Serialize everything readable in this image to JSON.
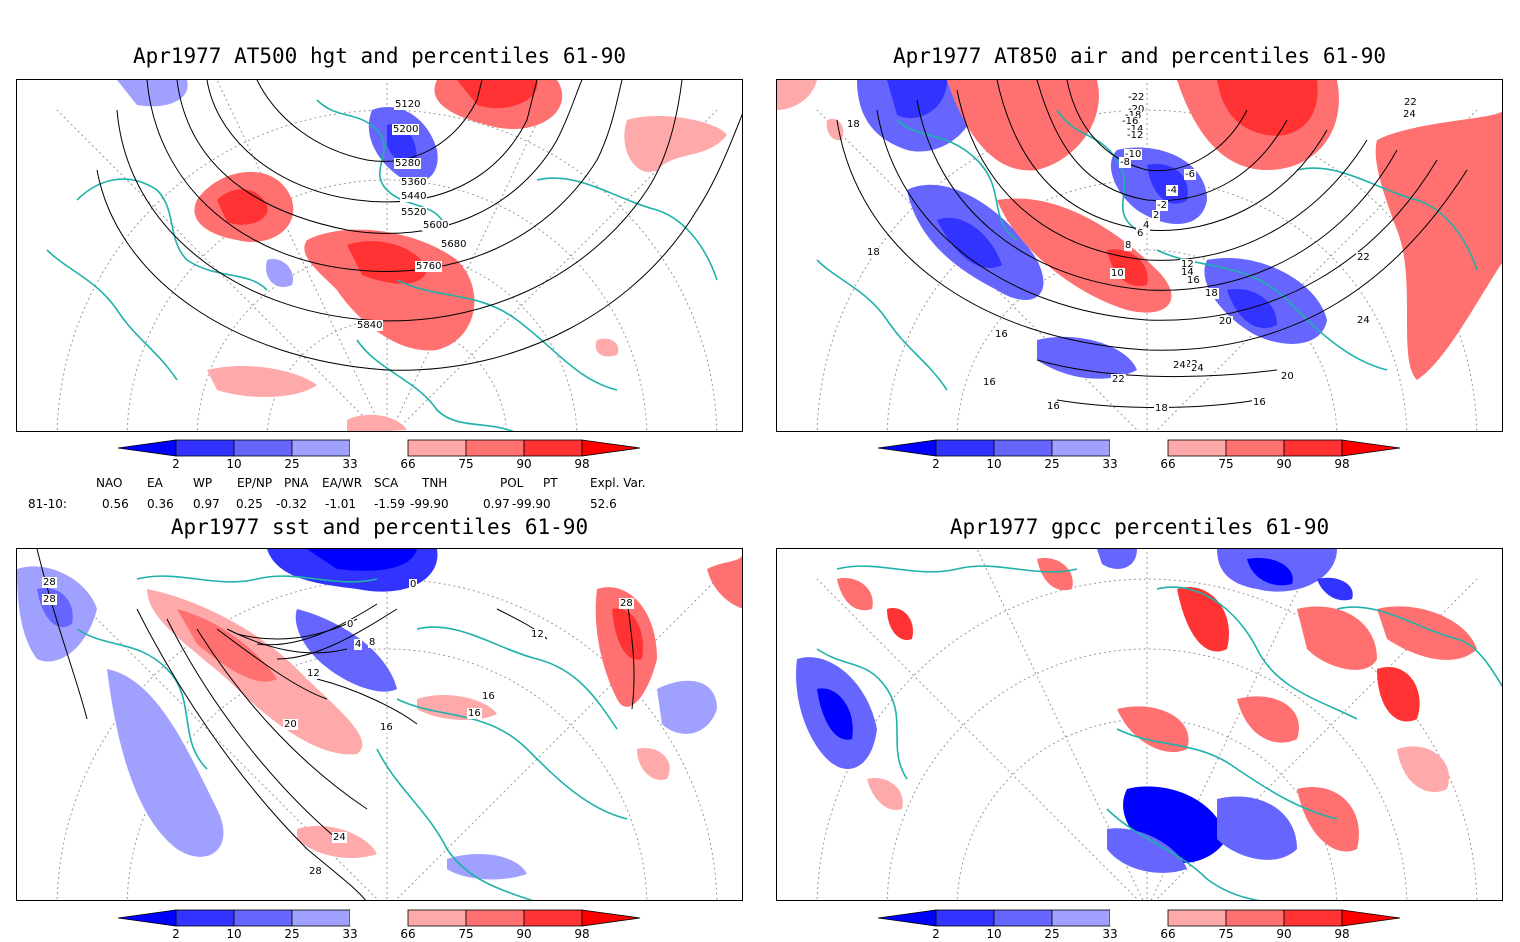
{
  "panels": [
    {
      "title": "Apr1977 AT500 hgt and percentiles 61-90",
      "contour_labels": [
        "5120",
        "5200",
        "5280",
        "5360",
        "5440",
        "5520",
        "5600",
        "5680",
        "5760",
        "5840"
      ]
    },
    {
      "title": "Apr1977 AT850 air and percentiles 61-90",
      "contour_labels": [
        "-22",
        "-20",
        "-18",
        "-16",
        "-14",
        "-12",
        "-10",
        "-8",
        "-6",
        "-4",
        "-2",
        "2",
        "4",
        "6",
        "8",
        "10",
        "12",
        "14",
        "16",
        "18",
        "20",
        "22",
        "24",
        "16",
        "16",
        "16",
        "18",
        "22",
        "24",
        "20",
        "16",
        "18",
        "18",
        "22",
        "24",
        "22",
        "22",
        "24"
      ]
    },
    {
      "title": "Apr1977 sst and percentiles 61-90",
      "contour_labels": [
        "28",
        "28",
        "0",
        "0",
        "4",
        "8",
        "12",
        "16",
        "16",
        "16",
        "20",
        "24",
        "28",
        "28",
        "12"
      ]
    },
    {
      "title": "Apr1977 gpcc percentiles 61-90",
      "contour_labels": []
    }
  ],
  "colorbar": {
    "labels": [
      "2",
      "10",
      "25",
      "33",
      "66",
      "75",
      "90",
      "98"
    ],
    "colors": [
      "#0000ff",
      "#3333ff",
      "#6666ff",
      "#a0a0ff",
      "#ffffff",
      "#ffaaaa",
      "#ff7070",
      "#ff3333",
      "#ff0000"
    ]
  },
  "indices": {
    "headers": [
      "NAO",
      "EA",
      "WP",
      "EP/NP",
      "PNA",
      "EA/WR",
      "SCA",
      "TNH",
      "POL",
      "PT",
      "Expl. Var."
    ],
    "row_label": "81-10:",
    "values": [
      "0.56",
      "0.36",
      "0.97",
      "0.25",
      "-0.32",
      "-1.01",
      "-1.59",
      "-99.90",
      "0.97",
      "-99.90",
      "52.6"
    ]
  }
}
